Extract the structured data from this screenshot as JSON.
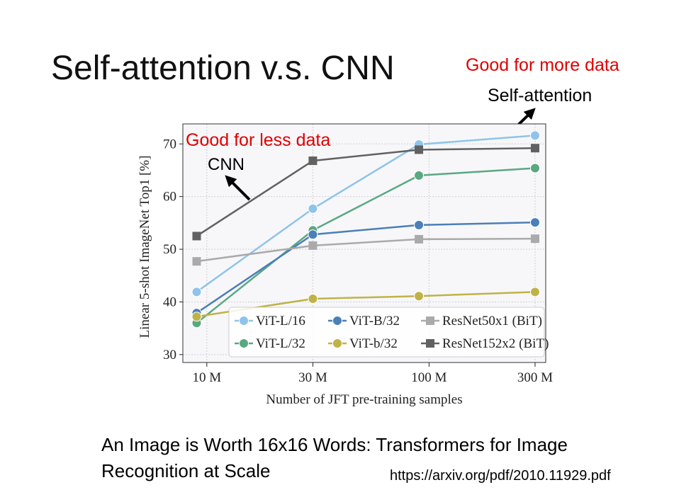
{
  "slide": {
    "title": "Self-attention v.s. CNN",
    "note_more": "Good for more data",
    "note_self": "Self-attention",
    "note_less": "Good for less data",
    "note_cnn": "CNN",
    "caption": [
      "An Image is Worth 16x16 Words: Transformers for Image",
      "Recognition at Scale"
    ],
    "url": "https://arxiv.org/pdf/2010.11929.pdf"
  },
  "chart_data": {
    "type": "line",
    "x_label": "Number of JFT pre-training samples",
    "y_label": "Linear 5-shot ImageNet Top1 [%]",
    "x": [
      9,
      30,
      90,
      300
    ],
    "xscale": "log",
    "xlim": [
      7.8,
      335
    ],
    "xticks": [
      {
        "value": 10,
        "label": "10 M"
      },
      {
        "value": 30,
        "label": "30 M"
      },
      {
        "value": 100,
        "label": "100 M"
      },
      {
        "value": 300,
        "label": "300 M"
      }
    ],
    "ylim": [
      28.5,
      73.8
    ],
    "yticks": [
      30,
      40,
      50,
      60,
      70
    ],
    "grid": true,
    "legend": "lower right",
    "legend_columns": 3,
    "series": [
      {
        "name": "ViT-L/16",
        "color": "#8ec4ea",
        "marker": "circle",
        "values": [
          41.9,
          57.7,
          69.9,
          71.6
        ]
      },
      {
        "name": "ViT-L/32",
        "color": "#5aa882",
        "marker": "circle",
        "values": [
          36.0,
          53.6,
          64.0,
          65.4
        ]
      },
      {
        "name": "ViT-B/32",
        "color": "#4a7fb8",
        "marker": "circle",
        "values": [
          37.9,
          52.8,
          54.6,
          55.1
        ]
      },
      {
        "name": "ViT-b/32",
        "color": "#bfb347",
        "marker": "circle",
        "values": [
          37.2,
          40.6,
          41.1,
          41.9
        ]
      },
      {
        "name": "ResNet50x1 (BiT)",
        "color": "#aaaaaa",
        "marker": "square",
        "values": [
          47.7,
          50.7,
          51.9,
          52.0
        ]
      },
      {
        "name": "ResNet152x2 (BiT)",
        "color": "#616161",
        "marker": "square",
        "values": [
          52.5,
          66.8,
          68.9,
          69.2
        ]
      }
    ]
  }
}
